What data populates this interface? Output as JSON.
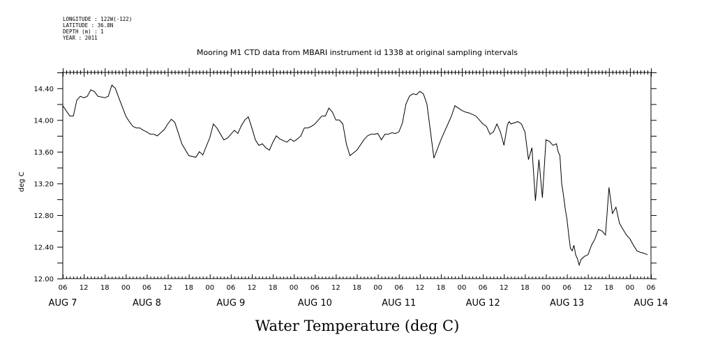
{
  "meta": {
    "longitude": "LONGITUDE : 122W(-122)",
    "latitude": "LATITUDE : 36.8N",
    "depth": "DEPTH (m) : 1",
    "year": "YEAR : 2011"
  },
  "chart_data": {
    "type": "line",
    "title": "Mooring M1 CTD data from MBARI instrument id 1338 at original sampling intervals",
    "xlabel": "Water Temperature (deg C)",
    "ylabel": "deg C",
    "xlim_hours": [
      0,
      168
    ],
    "ylim": [
      12.0,
      14.6
    ],
    "yticks": [
      "12.00",
      "12.40",
      "12.80",
      "13.20",
      "13.60",
      "14.00",
      "14.40"
    ],
    "hour_labels": [
      "06",
      "12",
      "18",
      "00",
      "06",
      "12",
      "18",
      "00",
      "06",
      "12",
      "18",
      "00",
      "06",
      "12",
      "18",
      "00",
      "06",
      "12",
      "18",
      "00",
      "06",
      "12",
      "18",
      "00",
      "06",
      "12",
      "18",
      "00",
      "06"
    ],
    "day_labels": [
      "AUG  7",
      "AUG  8",
      "AUG  9",
      "AUG 10",
      "AUG 11",
      "AUG 12",
      "AUG 13",
      "AUG 14"
    ],
    "series": [
      {
        "color": "#000000",
        "x_hours": [
          0,
          2,
          3,
          4,
          5,
          6,
          7,
          8,
          9,
          10,
          12,
          13,
          14,
          15,
          16,
          18,
          19,
          20,
          21,
          22,
          23,
          24,
          25,
          26,
          27,
          28,
          29,
          30,
          31,
          32,
          34,
          36,
          38,
          39,
          40,
          42,
          43,
          44,
          46,
          47,
          48,
          49,
          50,
          51,
          52,
          53,
          54,
          55,
          56,
          57,
          58,
          59,
          60,
          61,
          62,
          63,
          64,
          65,
          66,
          67,
          68,
          69,
          70,
          71,
          72,
          73,
          74,
          75,
          76,
          77,
          78,
          79,
          80,
          81,
          82,
          84,
          86,
          87,
          88,
          89,
          90,
          91,
          92,
          93,
          94,
          95,
          96,
          97,
          98,
          99,
          100,
          101,
          102,
          103,
          104,
          106,
          108,
          109,
          110,
          111,
          112,
          113,
          114,
          115,
          116,
          117,
          118,
          119,
          120,
          121,
          122,
          123,
          124,
          125,
          126,
          127,
          127.5,
          128,
          130,
          131,
          132,
          133,
          134,
          135,
          136,
          137,
          138,
          139,
          140,
          141,
          141.5,
          142,
          142.5,
          143,
          143.5,
          144,
          144.5,
          145,
          145.5,
          146,
          146.5,
          147,
          147.5,
          148,
          149,
          150,
          151,
          152,
          153,
          154,
          155,
          156,
          157,
          158,
          159,
          160,
          161,
          162,
          163,
          164,
          165,
          166,
          167
        ],
        "values": [
          14.18,
          14.05,
          14.05,
          14.25,
          14.3,
          14.28,
          14.3,
          14.38,
          14.36,
          14.3,
          14.28,
          14.3,
          14.44,
          14.4,
          14.28,
          14.05,
          13.98,
          13.92,
          13.9,
          13.9,
          13.87,
          13.85,
          13.82,
          13.82,
          13.8,
          13.84,
          13.88,
          13.95,
          14.01,
          13.97,
          13.7,
          13.55,
          13.53,
          13.6,
          13.56,
          13.78,
          13.95,
          13.9,
          13.75,
          13.77,
          13.82,
          13.87,
          13.83,
          13.93,
          14.0,
          14.04,
          13.9,
          13.75,
          13.68,
          13.7,
          13.65,
          13.62,
          13.72,
          13.8,
          13.76,
          13.74,
          13.72,
          13.76,
          13.73,
          13.76,
          13.8,
          13.9,
          13.9,
          13.92,
          13.95,
          14.0,
          14.05,
          14.05,
          14.15,
          14.1,
          14.0,
          14.0,
          13.95,
          13.7,
          13.55,
          13.62,
          13.75,
          13.8,
          13.82,
          13.82,
          13.83,
          13.75,
          13.82,
          13.82,
          13.84,
          13.83,
          13.85,
          13.96,
          14.2,
          14.3,
          14.33,
          14.32,
          14.36,
          14.33,
          14.2,
          13.52,
          13.75,
          13.85,
          13.95,
          14.05,
          14.18,
          14.15,
          14.12,
          14.1,
          14.09,
          14.07,
          14.05,
          14.0,
          13.95,
          13.92,
          13.82,
          13.85,
          13.95,
          13.85,
          13.68,
          13.94,
          13.98,
          13.95,
          13.98,
          13.95,
          13.85,
          13.5,
          13.65,
          12.98,
          13.5,
          13.02,
          13.75,
          13.73,
          13.68,
          13.7,
          13.6,
          13.55,
          13.2,
          13.05,
          12.88,
          12.75,
          12.55,
          12.38,
          12.35,
          12.42,
          12.3,
          12.25,
          12.17,
          12.24,
          12.28,
          12.3,
          12.42,
          12.5,
          12.62,
          12.6,
          12.55,
          13.15,
          12.82,
          12.9,
          12.7,
          12.62,
          12.55,
          12.5,
          12.42,
          12.35,
          12.33,
          12.32,
          12.3
        ]
      }
    ]
  }
}
